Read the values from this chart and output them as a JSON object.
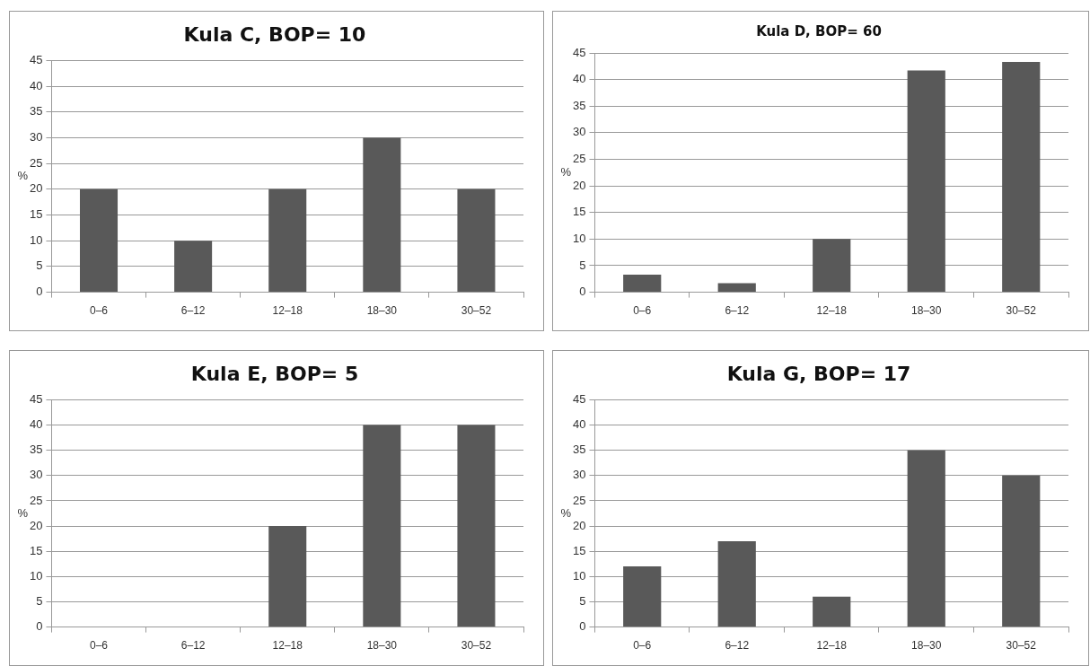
{
  "chart_data": [
    {
      "type": "bar",
      "title": "Kula C, BOP= 10",
      "ylabel": "%",
      "categories": [
        "0–6",
        "6–12",
        "12–18",
        "18–30",
        "30–52"
      ],
      "values": [
        20,
        10,
        20,
        30,
        20
      ],
      "color": "#595959",
      "ylim": [
        0,
        45
      ],
      "yticks": [
        0,
        5,
        10,
        15,
        20,
        25,
        30,
        35,
        40,
        45
      ],
      "grid": "y"
    },
    {
      "type": "bar",
      "title": "Kula D, BOP= 60",
      "ylabel": "%",
      "categories": [
        "0–6",
        "6–12",
        "12–18",
        "18–30",
        "30–52"
      ],
      "values": [
        3.3,
        1.7,
        10,
        41.7,
        43.3
      ],
      "color": "#595959",
      "ylim": [
        0,
        45
      ],
      "yticks": [
        0,
        5,
        10,
        15,
        20,
        25,
        30,
        35,
        40,
        45
      ],
      "grid": "y"
    },
    {
      "type": "bar",
      "title": "Kula E, BOP= 5",
      "ylabel": "%",
      "categories": [
        "0–6",
        "6–12",
        "12–18",
        "18–30",
        "30–52"
      ],
      "values": [
        0,
        0,
        20,
        40,
        40
      ],
      "color": "#595959",
      "ylim": [
        0,
        45
      ],
      "yticks": [
        0,
        5,
        10,
        15,
        20,
        25,
        30,
        35,
        40,
        45
      ],
      "grid": "y"
    },
    {
      "type": "bar",
      "title": "Kula G, BOP= 17",
      "ylabel": "%",
      "categories": [
        "0–6",
        "6–12",
        "12–18",
        "18–30",
        "30–52"
      ],
      "values": [
        12,
        17,
        6,
        35,
        30
      ],
      "color": "#595959",
      "ylim": [
        0,
        45
      ],
      "yticks": [
        0,
        5,
        10,
        15,
        20,
        25,
        30,
        35,
        40,
        45
      ],
      "grid": "y"
    }
  ]
}
